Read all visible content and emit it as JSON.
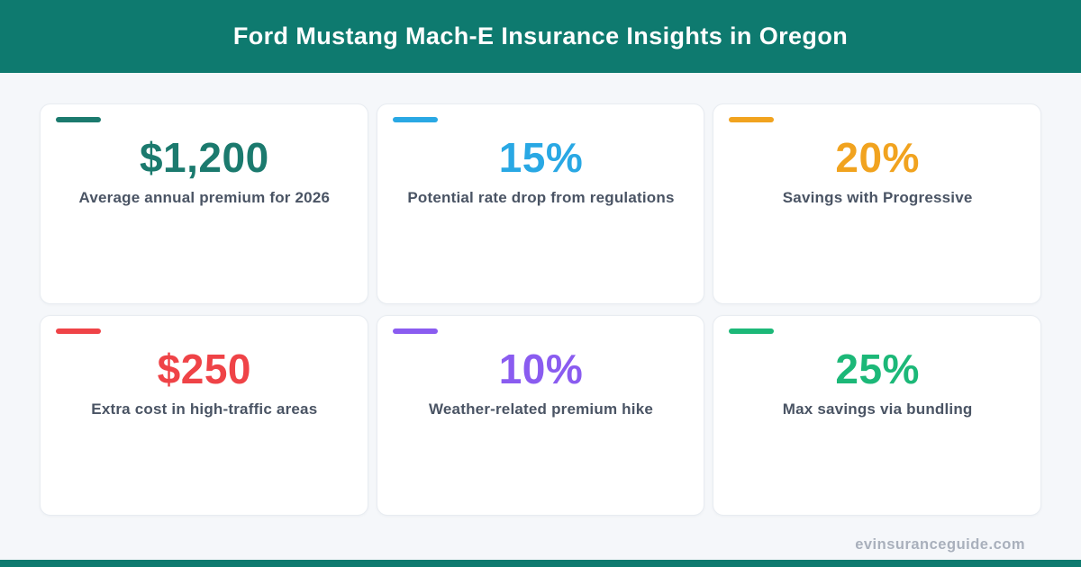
{
  "header": {
    "title": "Ford Mustang Mach-E Insurance Insights in Oregon"
  },
  "cards": [
    {
      "value": "$1,200",
      "label": "Average annual premium for 2026",
      "color": "#1b7a6e"
    },
    {
      "value": "15%",
      "label": "Potential rate drop from regulations",
      "color": "#29a8e4"
    },
    {
      "value": "20%",
      "label": "Savings with Progressive",
      "color": "#f1a31f"
    },
    {
      "value": "$250",
      "label": "Extra cost in high-traffic areas",
      "color": "#ef4347"
    },
    {
      "value": "10%",
      "label": "Weather-related premium hike",
      "color": "#8a5cf0"
    },
    {
      "value": "25%",
      "label": "Max savings via bundling",
      "color": "#1cb878"
    }
  ],
  "footer": {
    "site": "evinsuranceguide.com"
  },
  "colors": {
    "header_teal": "#0e7a6f",
    "page_background": "#f5f7fa",
    "card_background": "#ffffff",
    "card_border": "#e8ecf1",
    "label_text": "#4a5464",
    "watermark_text": "#a9b0bc"
  },
  "chart_data": {
    "type": "table",
    "title": "Ford Mustang Mach-E Insurance Insights in Oregon",
    "items": [
      {
        "stat": "$1,200",
        "numeric_value": 1200,
        "unit": "USD",
        "description": "Average annual premium for 2026"
      },
      {
        "stat": "15%",
        "numeric_value": 15,
        "unit": "percent",
        "description": "Potential rate drop from regulations"
      },
      {
        "stat": "20%",
        "numeric_value": 20,
        "unit": "percent",
        "description": "Savings with Progressive"
      },
      {
        "stat": "$250",
        "numeric_value": 250,
        "unit": "USD",
        "description": "Extra cost in high-traffic areas"
      },
      {
        "stat": "10%",
        "numeric_value": 10,
        "unit": "percent",
        "description": "Weather-related premium hike"
      },
      {
        "stat": "25%",
        "numeric_value": 25,
        "unit": "percent",
        "description": "Max savings via bundling"
      }
    ],
    "layout": "2 rows x 3 columns of stat cards"
  }
}
